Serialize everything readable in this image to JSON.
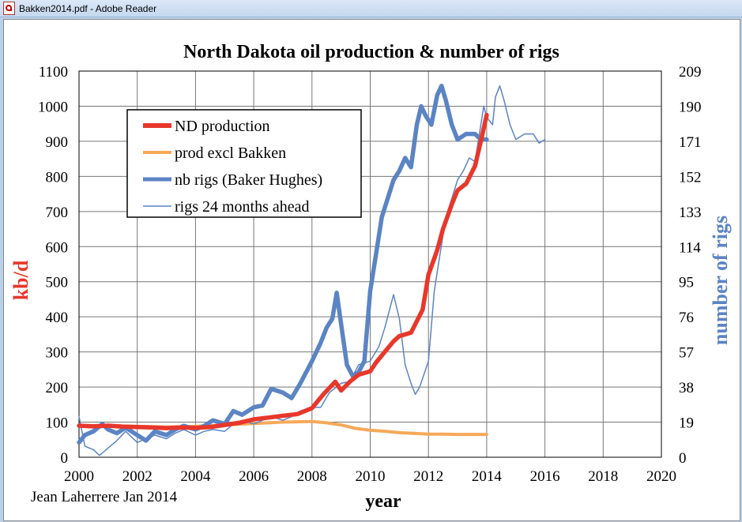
{
  "window": {
    "title": "Bakken2014.pdf - Adobe Reader"
  },
  "colors": {
    "production": "#e8372b",
    "prod_excl_bakken": "#f5a95a",
    "rigs": "#5b84c4",
    "rigs_ahead": "#5b84c4",
    "left_axis_label": "#e8372b",
    "right_axis_label": "#5b84c4"
  },
  "chart_data": {
    "type": "line",
    "title": "North Dakota oil production & number of rigs",
    "xlabel": "year",
    "ylabel": "kb/d",
    "y2label": "number of rigs",
    "credit": "Jean Laherrere Jan 2014",
    "xlim": [
      2000,
      2020
    ],
    "ylim": [
      0,
      1100
    ],
    "y2lim": [
      0,
      209
    ],
    "x_ticks": [
      "2000",
      "2002",
      "2004",
      "2006",
      "2008",
      "2010",
      "2012",
      "2014",
      "2016",
      "2018",
      "2020"
    ],
    "y_ticks": [
      "0",
      "100",
      "200",
      "300",
      "400",
      "500",
      "600",
      "700",
      "800",
      "900",
      "1000",
      "1100"
    ],
    "y2_ticks": [
      "0",
      "19",
      "38",
      "57",
      "76",
      "95",
      "114",
      "133",
      "152",
      "171",
      "190",
      "209"
    ],
    "grid": true,
    "legend_position": "upper-left",
    "series": [
      {
        "name": "ND production",
        "axis": "left",
        "style": "thick",
        "points": [
          [
            2000.0,
            90
          ],
          [
            2000.5,
            88
          ],
          [
            2001.0,
            90
          ],
          [
            2001.5,
            87
          ],
          [
            2002.0,
            86
          ],
          [
            2002.5,
            85
          ],
          [
            2003.0,
            83
          ],
          [
            2003.5,
            85
          ],
          [
            2004.0,
            84
          ],
          [
            2004.5,
            86
          ],
          [
            2005.0,
            92
          ],
          [
            2005.5,
            98
          ],
          [
            2006.0,
            108
          ],
          [
            2006.5,
            113
          ],
          [
            2007.0,
            118
          ],
          [
            2007.5,
            123
          ],
          [
            2008.0,
            140
          ],
          [
            2008.4,
            180
          ],
          [
            2008.8,
            215
          ],
          [
            2009.0,
            190
          ],
          [
            2009.3,
            215
          ],
          [
            2009.6,
            235
          ],
          [
            2010.0,
            245
          ],
          [
            2010.2,
            270
          ],
          [
            2010.5,
            300
          ],
          [
            2010.8,
            330
          ],
          [
            2011.0,
            345
          ],
          [
            2011.4,
            355
          ],
          [
            2011.8,
            420
          ],
          [
            2012.0,
            520
          ],
          [
            2012.3,
            590
          ],
          [
            2012.5,
            650
          ],
          [
            2012.8,
            720
          ],
          [
            2013.0,
            760
          ],
          [
            2013.3,
            780
          ],
          [
            2013.6,
            830
          ],
          [
            2013.8,
            900
          ],
          [
            2014.0,
            975
          ]
        ]
      },
      {
        "name": "prod excl Bakken",
        "axis": "left",
        "style": "medium",
        "points": [
          [
            2000.0,
            90
          ],
          [
            2001.0,
            90
          ],
          [
            2002.0,
            88
          ],
          [
            2003.0,
            86
          ],
          [
            2004.0,
            88
          ],
          [
            2005.0,
            92
          ],
          [
            2006.0,
            96
          ],
          [
            2007.0,
            100
          ],
          [
            2008.0,
            102
          ],
          [
            2008.5,
            98
          ],
          [
            2009.0,
            92
          ],
          [
            2009.5,
            82
          ],
          [
            2010.0,
            77
          ],
          [
            2010.5,
            74
          ],
          [
            2011.0,
            70
          ],
          [
            2011.5,
            68
          ],
          [
            2012.0,
            66
          ],
          [
            2012.5,
            66
          ],
          [
            2013.0,
            65
          ],
          [
            2013.5,
            65
          ],
          [
            2014.0,
            65
          ]
        ]
      },
      {
        "name": "nb rigs (Baker Hughes)",
        "axis": "right",
        "style": "thick",
        "points": [
          [
            2000.0,
            8
          ],
          [
            2000.2,
            12
          ],
          [
            2000.5,
            14
          ],
          [
            2000.8,
            18
          ],
          [
            2001.0,
            15
          ],
          [
            2001.3,
            13
          ],
          [
            2001.6,
            16
          ],
          [
            2002.0,
            12
          ],
          [
            2002.3,
            9
          ],
          [
            2002.6,
            14
          ],
          [
            2003.0,
            12
          ],
          [
            2003.3,
            15
          ],
          [
            2003.6,
            17
          ],
          [
            2004.0,
            15
          ],
          [
            2004.3,
            17
          ],
          [
            2004.6,
            20
          ],
          [
            2005.0,
            18
          ],
          [
            2005.3,
            25
          ],
          [
            2005.6,
            23
          ],
          [
            2006.0,
            27
          ],
          [
            2006.3,
            28
          ],
          [
            2006.6,
            37
          ],
          [
            2007.0,
            35
          ],
          [
            2007.3,
            32
          ],
          [
            2007.6,
            40
          ],
          [
            2008.0,
            52
          ],
          [
            2008.3,
            62
          ],
          [
            2008.5,
            70
          ],
          [
            2008.7,
            75
          ],
          [
            2008.85,
            89
          ],
          [
            2009.0,
            72
          ],
          [
            2009.2,
            50
          ],
          [
            2009.4,
            44
          ],
          [
            2009.6,
            46
          ],
          [
            2009.8,
            52
          ],
          [
            2010.0,
            90
          ],
          [
            2010.2,
            110
          ],
          [
            2010.4,
            130
          ],
          [
            2010.6,
            140
          ],
          [
            2010.8,
            150
          ],
          [
            2011.0,
            155
          ],
          [
            2011.2,
            162
          ],
          [
            2011.4,
            157
          ],
          [
            2011.6,
            180
          ],
          [
            2011.75,
            190
          ],
          [
            2011.9,
            185
          ],
          [
            2012.1,
            180
          ],
          [
            2012.3,
            196
          ],
          [
            2012.45,
            201
          ],
          [
            2012.6,
            193
          ],
          [
            2012.8,
            180
          ],
          [
            2013.0,
            172
          ],
          [
            2013.3,
            175
          ],
          [
            2013.6,
            175
          ],
          [
            2013.8,
            172
          ],
          [
            2014.0,
            172
          ]
        ]
      },
      {
        "name": "rigs 24 months ahead",
        "axis": "right",
        "style": "thin",
        "points": [
          [
            2000.0,
            22
          ],
          [
            2000.2,
            6
          ],
          [
            2000.5,
            4
          ],
          [
            2000.7,
            1
          ],
          [
            2001.0,
            5
          ],
          [
            2001.3,
            9
          ],
          [
            2001.6,
            14
          ],
          [
            2002.0,
            8
          ],
          [
            2002.3,
            10
          ],
          [
            2002.6,
            12
          ],
          [
            2003.0,
            10
          ],
          [
            2003.3,
            13
          ],
          [
            2003.6,
            15
          ],
          [
            2004.0,
            12
          ],
          [
            2004.3,
            14
          ],
          [
            2004.6,
            15
          ],
          [
            2005.0,
            14
          ],
          [
            2005.3,
            18
          ],
          [
            2005.6,
            20
          ],
          [
            2006.0,
            18
          ],
          [
            2006.3,
            20
          ],
          [
            2006.6,
            22
          ],
          [
            2007.0,
            20
          ],
          [
            2007.3,
            22
          ],
          [
            2007.6,
            25
          ],
          [
            2008.0,
            27
          ],
          [
            2008.3,
            27
          ],
          [
            2008.6,
            35
          ],
          [
            2009.0,
            40
          ],
          [
            2009.3,
            41
          ],
          [
            2009.6,
            50
          ],
          [
            2010.0,
            52
          ],
          [
            2010.3,
            60
          ],
          [
            2010.5,
            70
          ],
          [
            2010.8,
            88
          ],
          [
            2011.0,
            75
          ],
          [
            2011.2,
            50
          ],
          [
            2011.4,
            40
          ],
          [
            2011.55,
            34
          ],
          [
            2011.7,
            38
          ],
          [
            2012.0,
            52
          ],
          [
            2012.2,
            90
          ],
          [
            2012.4,
            110
          ],
          [
            2012.6,
            130
          ],
          [
            2012.8,
            140
          ],
          [
            2013.0,
            150
          ],
          [
            2013.2,
            155
          ],
          [
            2013.4,
            162
          ],
          [
            2013.6,
            160
          ],
          [
            2013.8,
            180
          ],
          [
            2013.9,
            190
          ],
          [
            2014.0,
            184
          ],
          [
            2014.2,
            180
          ],
          [
            2014.3,
            195
          ],
          [
            2014.45,
            201
          ],
          [
            2014.6,
            193
          ],
          [
            2014.8,
            180
          ],
          [
            2015.0,
            172
          ],
          [
            2015.3,
            175
          ],
          [
            2015.6,
            175
          ],
          [
            2015.8,
            170
          ],
          [
            2016.0,
            172
          ]
        ]
      }
    ]
  }
}
